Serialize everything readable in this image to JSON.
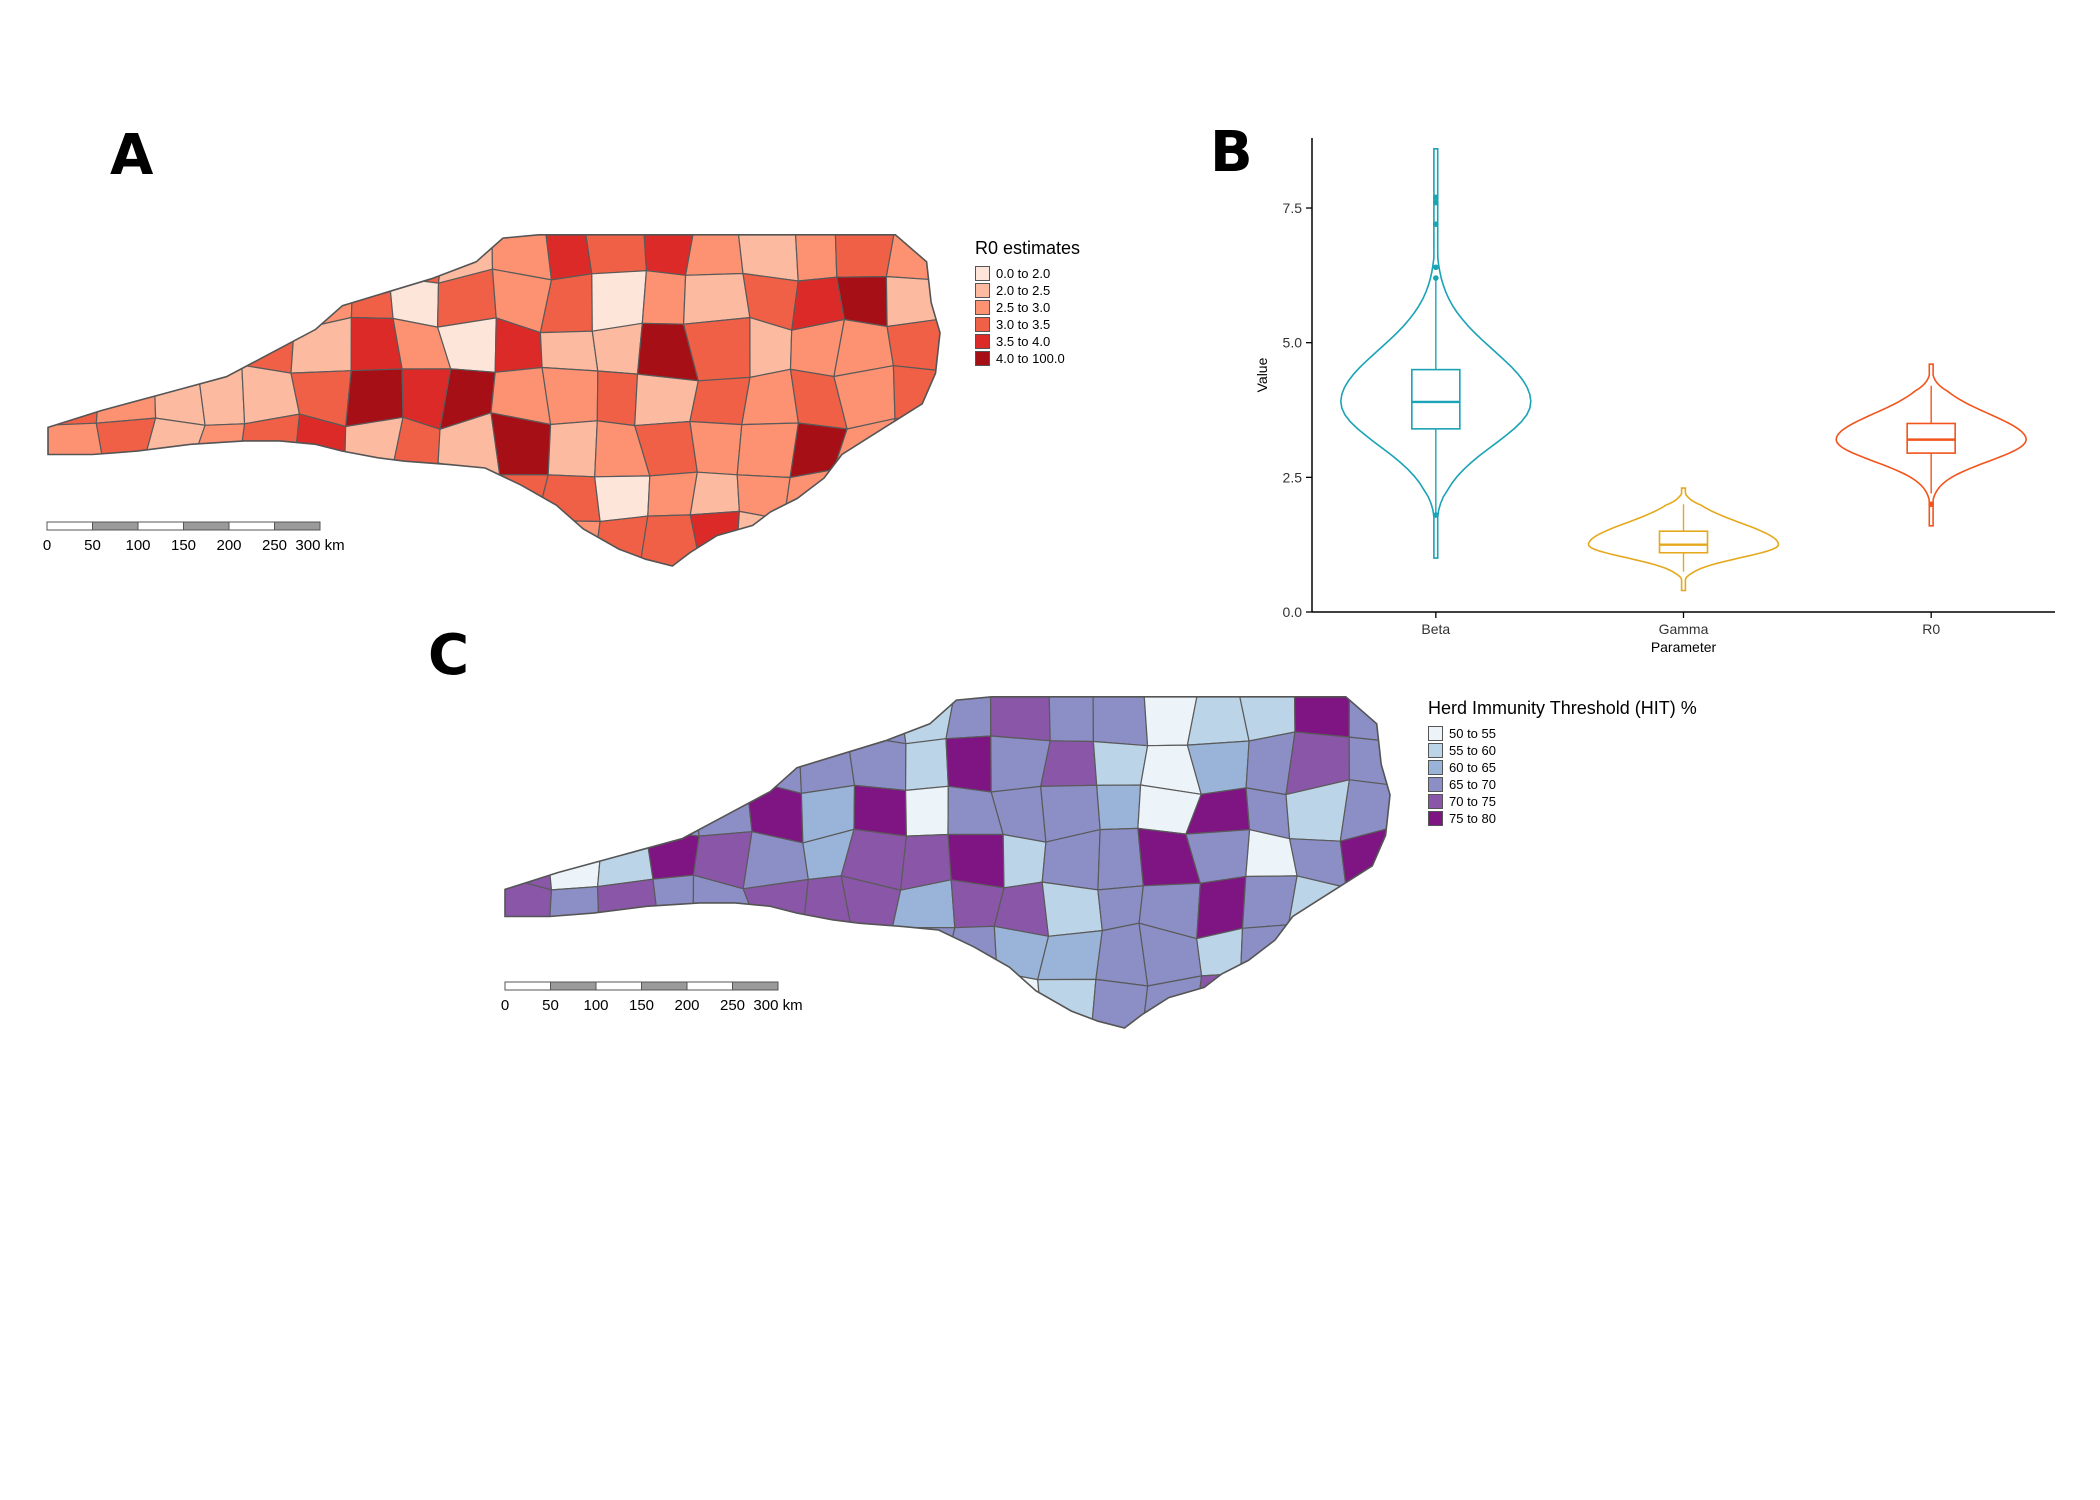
{
  "panel_a": {
    "letter": "A",
    "legend_title": "R0 estimates",
    "legend": [
      {
        "label": "0.0 to 2.0",
        "color": "#fee5d9"
      },
      {
        "label": "2.0 to 2.5",
        "color": "#fcbba1"
      },
      {
        "label": "2.5 to 3.0",
        "color": "#fc9272"
      },
      {
        "label": "3.0 to 3.5",
        "color": "#f06046"
      },
      {
        "label": "3.5 to 4.0",
        "color": "#dc2a28"
      },
      {
        "label": "4.0 to 100.0",
        "color": "#a50f15"
      }
    ],
    "scalebar": {
      "labels": [
        "0",
        "50",
        "100",
        "150",
        "200",
        "250",
        "300 km"
      ]
    }
  },
  "panel_b": {
    "letter": "B",
    "chart_data": {
      "type": "violin",
      "xlabel": "Parameter",
      "ylabel": "Value",
      "ylim": [
        0.0,
        8.8
      ],
      "yticks": [
        "0.0",
        "2.5",
        "5.0",
        "7.5"
      ],
      "categories": [
        "Beta",
        "Gamma",
        "R0"
      ],
      "series": [
        {
          "category": "Beta",
          "color": "#1aa3b5",
          "min": 1.0,
          "q1": 3.4,
          "median": 3.9,
          "q3": 4.5,
          "max": 8.6,
          "whisker_low": 1.8,
          "whisker_high": 6.2,
          "outliers": [
            1.8,
            6.2,
            6.4,
            7.2,
            7.6,
            7.7
          ]
        },
        {
          "category": "Gamma",
          "color": "#e5a81c",
          "min": 0.4,
          "q1": 1.1,
          "median": 1.25,
          "q3": 1.5,
          "max": 2.3,
          "whisker_low": 0.75,
          "whisker_high": 2.0,
          "outliers": []
        },
        {
          "category": "R0",
          "color": "#f2541c",
          "min": 1.6,
          "q1": 2.95,
          "median": 3.2,
          "q3": 3.5,
          "max": 4.6,
          "whisker_low": 2.2,
          "whisker_high": 4.2,
          "outliers": [
            2.0
          ]
        }
      ]
    }
  },
  "panel_c": {
    "letter": "C",
    "legend_title": "Herd Immunity Threshold (HIT) %",
    "legend": [
      {
        "label": "50 to 55",
        "color": "#edf4f9"
      },
      {
        "label": "55 to 60",
        "color": "#bcd4e8"
      },
      {
        "label": "60 to 65",
        "color": "#99b4d8"
      },
      {
        "label": "65 to 70",
        "color": "#8c8fc6"
      },
      {
        "label": "70 to 75",
        "color": "#8a56a8"
      },
      {
        "label": "75 to 80",
        "color": "#7e1583"
      }
    ],
    "scalebar": {
      "labels": [
        "0",
        "50",
        "100",
        "150",
        "200",
        "250",
        "300 km"
      ]
    }
  }
}
